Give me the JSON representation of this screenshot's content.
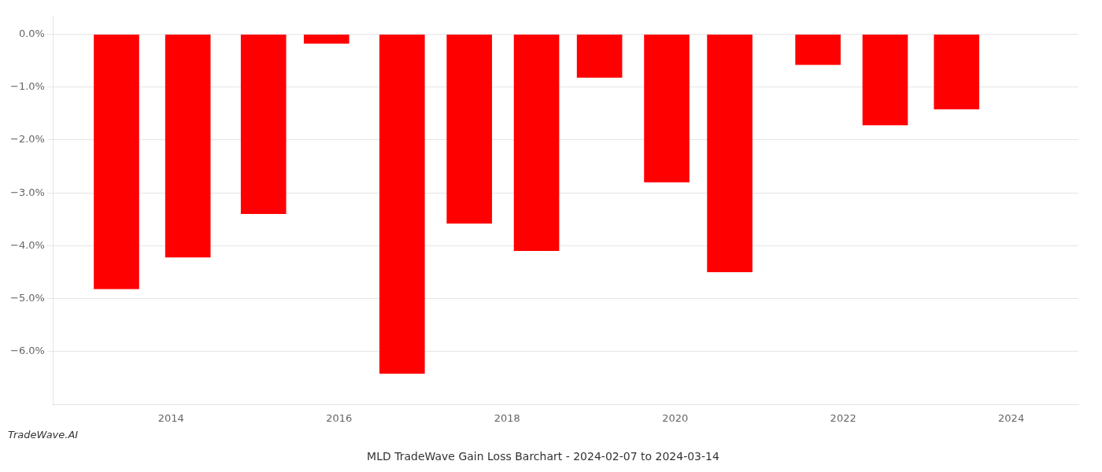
{
  "chart_data": {
    "type": "bar",
    "title": "MLD TradeWave Gain Loss Barchart - 2024-02-07 to 2024-03-14",
    "annotation": "TradeWave.AI",
    "x": [
      2013.35,
      2014.2,
      2015.1,
      2015.85,
      2016.75,
      2017.55,
      2018.35,
      2019.1,
      2019.9,
      2020.65,
      2021.7,
      2022.5,
      2023.35
    ],
    "values": [
      -4.82,
      -4.22,
      -3.4,
      -0.18,
      -6.42,
      -3.58,
      -4.1,
      -0.82,
      -2.8,
      -4.5,
      -0.58,
      -1.72,
      -1.42
    ],
    "color": "#ff0000",
    "xlim": [
      2012.6,
      2024.8
    ],
    "xticks": [
      2014,
      2016,
      2018,
      2020,
      2022,
      2024
    ],
    "ylim": [
      -7.0,
      0.35
    ],
    "yticks": [
      {
        "value": 0.0,
        "label": "0.0%"
      },
      {
        "value": -1.0,
        "label": "−1.0%"
      },
      {
        "value": -2.0,
        "label": "−2.0%"
      },
      {
        "value": -3.0,
        "label": "−3.0%"
      },
      {
        "value": -4.0,
        "label": "−4.0%"
      },
      {
        "value": -5.0,
        "label": "−5.0%"
      },
      {
        "value": -6.0,
        "label": "−6.0%"
      }
    ],
    "grid": "y"
  }
}
